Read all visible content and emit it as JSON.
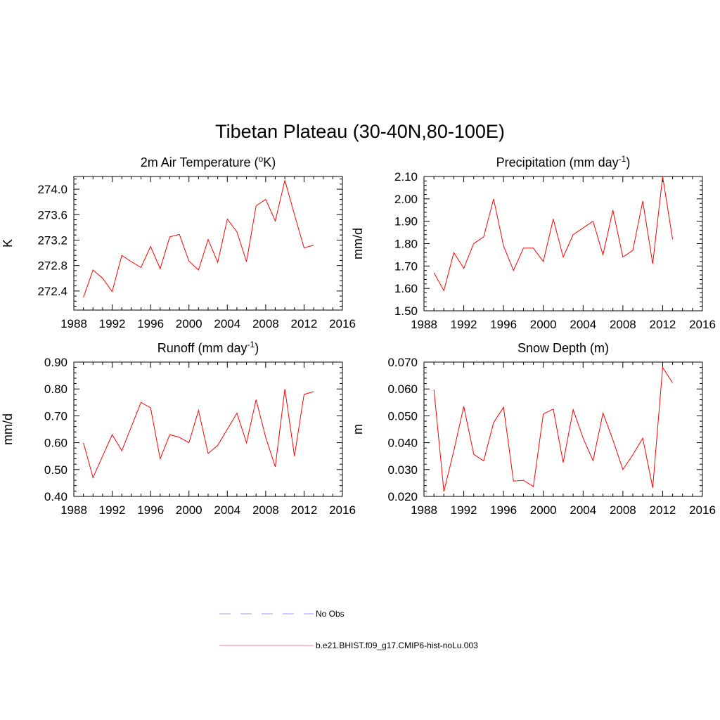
{
  "figure": {
    "title": "Tibetan Plateau (30-40N,80-100E)"
  },
  "legend": {
    "placement": "bottom-center",
    "entries": [
      {
        "label": "No Obs",
        "color": "#9999ff",
        "style": "dashed"
      },
      {
        "label": "b.e21.BHIST.f09_g17.CMIP6-hist-noLu.003",
        "color": "#ff8080",
        "style": "solid"
      }
    ]
  },
  "chart_data": [
    {
      "type": "line",
      "title": "2m Air Temperature (°K)",
      "title_parts": {
        "pre": "2m Air Temperature (",
        "sup": "o",
        "post": "K)"
      },
      "xlabel": "",
      "ylabel": "K",
      "xlim": [
        1988,
        2016
      ],
      "ylim": [
        272.1,
        274.2
      ],
      "xticks": [
        1988,
        1992,
        1996,
        2000,
        2004,
        2008,
        2012,
        2016
      ],
      "xtick_labels": [
        "1988",
        "1992",
        "1996",
        "2000",
        "2004",
        "2008",
        "2012",
        "2016"
      ],
      "yticks": [
        272.4,
        272.8,
        273.2,
        273.6,
        274.0
      ],
      "ytick_labels": [
        "272.4",
        "272.8",
        "273.2",
        "273.6",
        "274.0"
      ],
      "grid": false,
      "series": [
        {
          "color": "#ff0000",
          "x": [
            1989,
            1990,
            1991,
            1992,
            1993,
            1994,
            1995,
            1996,
            1997,
            1998,
            1999,
            2000,
            2001,
            2002,
            2003,
            2004,
            2005,
            2006,
            2007,
            2008,
            2009,
            2010,
            2011,
            2012,
            2013
          ],
          "values": [
            272.3,
            272.73,
            272.6,
            272.39,
            272.96,
            272.86,
            272.77,
            273.1,
            272.75,
            273.25,
            273.29,
            272.87,
            272.73,
            273.21,
            272.85,
            273.53,
            273.33,
            272.86,
            273.74,
            273.84,
            273.5,
            274.14,
            273.6,
            273.08,
            273.12
          ]
        }
      ]
    },
    {
      "type": "line",
      "title": "Precipitation (mm day-1)",
      "title_parts": {
        "pre": "Precipitation (mm day",
        "sup": "-1",
        "post": ")"
      },
      "xlabel": "",
      "ylabel": "mm/d",
      "xlim": [
        1988,
        2016
      ],
      "ylim": [
        1.5,
        2.1
      ],
      "xticks": [
        1988,
        1992,
        1996,
        2000,
        2004,
        2008,
        2012,
        2016
      ],
      "xtick_labels": [
        "1988",
        "1992",
        "1996",
        "2000",
        "2004",
        "2008",
        "2012",
        "2016"
      ],
      "yticks": [
        1.5,
        1.6,
        1.7,
        1.8,
        1.9,
        2.0,
        2.1
      ],
      "ytick_labels": [
        "1.50",
        "1.60",
        "1.70",
        "1.80",
        "1.90",
        "2.00",
        "2.10"
      ],
      "grid": false,
      "series": [
        {
          "color": "#ff0000",
          "x": [
            1989,
            1990,
            1991,
            1992,
            1993,
            1994,
            1995,
            1996,
            1997,
            1998,
            1999,
            2000,
            2001,
            2002,
            2003,
            2004,
            2005,
            2006,
            2007,
            2008,
            2009,
            2010,
            2011,
            2012,
            2013
          ],
          "values": [
            1.67,
            1.59,
            1.76,
            1.69,
            1.8,
            1.83,
            2.0,
            1.79,
            1.68,
            1.78,
            1.78,
            1.72,
            1.91,
            1.74,
            1.84,
            1.87,
            1.9,
            1.75,
            1.95,
            1.74,
            1.77,
            1.99,
            1.71,
            2.1,
            1.82
          ]
        }
      ]
    },
    {
      "type": "line",
      "title": "Runoff (mm day-1)",
      "title_parts": {
        "pre": "Runoff (mm day",
        "sup": "-1",
        "post": ")"
      },
      "xlabel": "",
      "ylabel": "mm/d",
      "xlim": [
        1988,
        2016
      ],
      "ylim": [
        0.4,
        0.9
      ],
      "xticks": [
        1988,
        1992,
        1996,
        2000,
        2004,
        2008,
        2012,
        2016
      ],
      "xtick_labels": [
        "1988",
        "1992",
        "1996",
        "2000",
        "2004",
        "2008",
        "2012",
        "2016"
      ],
      "yticks": [
        0.4,
        0.5,
        0.6,
        0.7,
        0.8,
        0.9
      ],
      "ytick_labels": [
        "0.40",
        "0.50",
        "0.60",
        "0.70",
        "0.80",
        "0.90"
      ],
      "grid": false,
      "series": [
        {
          "color": "#ff0000",
          "x": [
            1989,
            1990,
            1991,
            1992,
            1993,
            1994,
            1995,
            1996,
            1997,
            1998,
            1999,
            2000,
            2001,
            2002,
            2003,
            2004,
            2005,
            2006,
            2007,
            2008,
            2009,
            2010,
            2011,
            2012,
            2013
          ],
          "values": [
            0.6,
            0.47,
            0.55,
            0.63,
            0.57,
            0.66,
            0.75,
            0.73,
            0.54,
            0.63,
            0.62,
            0.6,
            0.72,
            0.56,
            0.59,
            0.65,
            0.71,
            0.6,
            0.76,
            0.62,
            0.51,
            0.8,
            0.55,
            0.78,
            0.79
          ]
        }
      ]
    },
    {
      "type": "line",
      "title": "Snow Depth (m)",
      "title_parts": {
        "pre": "Snow Depth (m)",
        "sup": "",
        "post": ""
      },
      "xlabel": "",
      "ylabel": "m",
      "xlim": [
        1988,
        2016
      ],
      "ylim": [
        0.02,
        0.07
      ],
      "xticks": [
        1988,
        1992,
        1996,
        2000,
        2004,
        2008,
        2012,
        2016
      ],
      "xtick_labels": [
        "1988",
        "1992",
        "1996",
        "2000",
        "2004",
        "2008",
        "2012",
        "2016"
      ],
      "yticks": [
        0.02,
        0.03,
        0.04,
        0.05,
        0.06,
        0.07
      ],
      "ytick_labels": [
        "0.020",
        "0.030",
        "0.040",
        "0.050",
        "0.060",
        "0.070"
      ],
      "grid": false,
      "series": [
        {
          "color": "#ff0000",
          "x": [
            1989,
            1990,
            1991,
            1992,
            1993,
            1994,
            1995,
            1996,
            1997,
            1998,
            1999,
            2000,
            2001,
            2002,
            2003,
            2004,
            2005,
            2006,
            2007,
            2008,
            2009,
            2010,
            2011,
            2012,
            2013
          ],
          "values": [
            0.0598,
            0.0218,
            0.037,
            0.0535,
            0.0357,
            0.0332,
            0.0475,
            0.0532,
            0.0257,
            0.026,
            0.0237,
            0.0507,
            0.0525,
            0.0326,
            0.0523,
            0.0417,
            0.0333,
            0.051,
            0.041,
            0.03,
            0.0355,
            0.0417,
            0.0232,
            0.068,
            0.0623
          ]
        }
      ]
    }
  ]
}
